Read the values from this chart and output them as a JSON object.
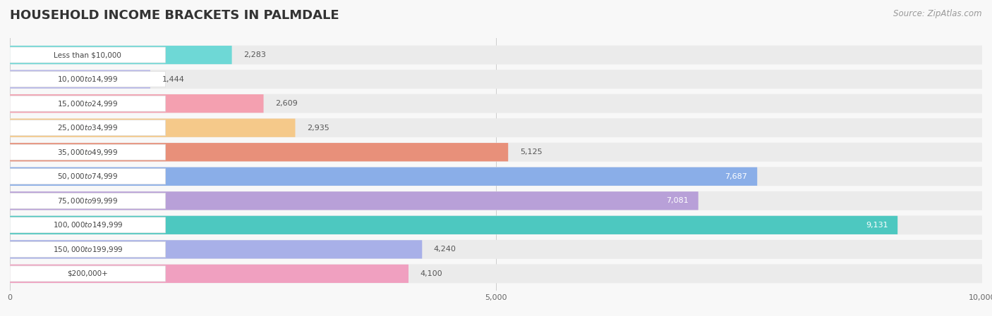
{
  "title": "HOUSEHOLD INCOME BRACKETS IN PALMDALE",
  "source": "Source: ZipAtlas.com",
  "categories": [
    "Less than $10,000",
    "$10,000 to $14,999",
    "$15,000 to $24,999",
    "$25,000 to $34,999",
    "$35,000 to $49,999",
    "$50,000 to $74,999",
    "$75,000 to $99,999",
    "$100,000 to $149,999",
    "$150,000 to $199,999",
    "$200,000+"
  ],
  "values": [
    2283,
    1444,
    2609,
    2935,
    5125,
    7687,
    7081,
    9131,
    4240,
    4100
  ],
  "bar_colors": [
    "#6ed8d6",
    "#b8b8e8",
    "#f4a0b0",
    "#f5c98a",
    "#e8907a",
    "#8aaee8",
    "#b8a0d8",
    "#4dc8c0",
    "#a8b0e8",
    "#f0a0c0"
  ],
  "label_colors": [
    "dark",
    "dark",
    "dark",
    "dark",
    "dark",
    "white",
    "white",
    "white",
    "dark",
    "dark"
  ],
  "xlim": [
    0,
    10000
  ],
  "xticks": [
    0,
    5000,
    10000
  ],
  "background_color": "#f8f8f8",
  "bar_background_color": "#ebebeb",
  "title_fontsize": 13,
  "source_fontsize": 8.5
}
